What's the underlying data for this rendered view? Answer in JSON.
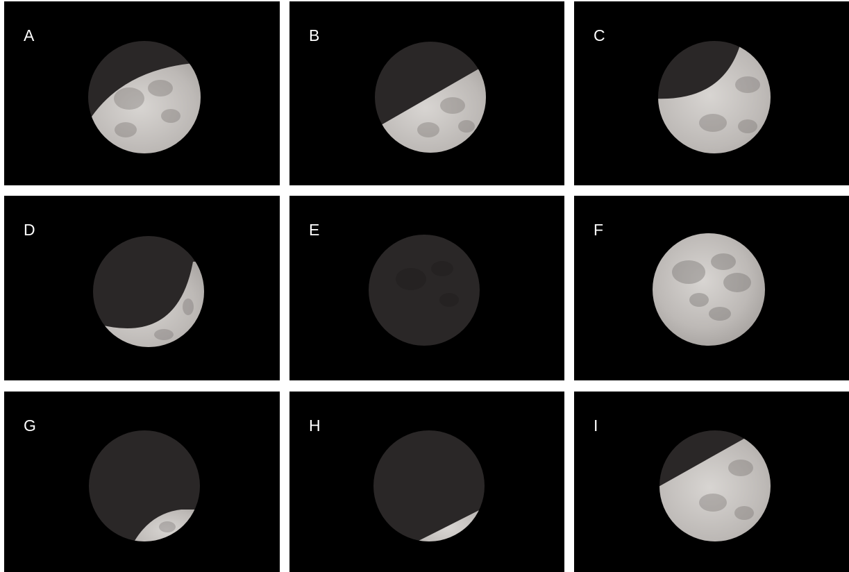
{
  "figure": {
    "background": "#ffffff",
    "panel_background": "#000000",
    "label_color": "#ffffff",
    "moon_lit_color": "#c9c6c4",
    "moon_shadow_color": "#2a2727",
    "panels": [
      {
        "label": "A",
        "phase": "partial eclipse",
        "lit_fraction": 0.7
      },
      {
        "label": "B",
        "phase": "partial eclipse",
        "lit_fraction": 0.45
      },
      {
        "label": "C",
        "phase": "partial eclipse",
        "lit_fraction": 0.72
      },
      {
        "label": "D",
        "phase": "partial eclipse",
        "lit_fraction": 0.2
      },
      {
        "label": "E",
        "phase": "total eclipse",
        "lit_fraction": 0.0
      },
      {
        "label": "F",
        "phase": "full moon",
        "lit_fraction": 1.0
      },
      {
        "label": "G",
        "phase": "partial eclipse",
        "lit_fraction": 0.12
      },
      {
        "label": "H",
        "phase": "partial eclipse",
        "lit_fraction": 0.07
      },
      {
        "label": "I",
        "phase": "partial eclipse",
        "lit_fraction": 0.65
      }
    ]
  }
}
